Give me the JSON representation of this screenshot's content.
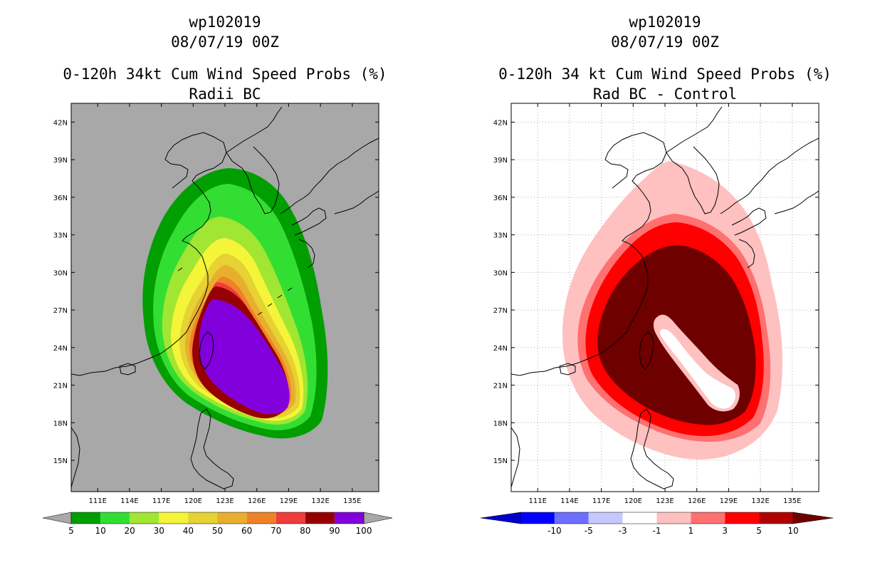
{
  "chart_data": [
    {
      "type": "heatmap",
      "title_line1": "wp102019",
      "title_line2": "08/07/19 00Z",
      "title_line3": "0-120h 34kt Cum Wind Speed Probs (%)",
      "title_line4": "Radii BC",
      "x_ticks": [
        "111E",
        "114E",
        "117E",
        "120E",
        "123E",
        "126E",
        "129E",
        "132E",
        "135E"
      ],
      "y_ticks": [
        "42N",
        "39N",
        "36N",
        "33N",
        "30N",
        "27N",
        "24N",
        "21N",
        "18N",
        "15N"
      ],
      "xlim": [
        108.5,
        137.5
      ],
      "ylim": [
        12.5,
        43.5
      ],
      "background_color": "#a8a8a8",
      "colorbar_labels": [
        "5",
        "10",
        "20",
        "30",
        "40",
        "50",
        "60",
        "70",
        "80",
        "90",
        "100"
      ],
      "colorbar_colors": [
        "#009e00",
        "#33de33",
        "#a0e632",
        "#f4f438",
        "#e6d232",
        "#e8af2e",
        "#ef8229",
        "#f03c3c",
        "#960000",
        "#8200dc"
      ],
      "contour_levels": [
        5,
        10,
        20,
        30,
        40,
        50,
        60,
        70,
        80,
        90
      ]
    },
    {
      "type": "heatmap",
      "title_line1": "wp102019",
      "title_line2": "08/07/19 00Z",
      "title_line3": "0-120h 34 kt Cum Wind Speed Probs (%)",
      "title_line4": "Rad BC - Control",
      "x_ticks": [
        "111E",
        "114E",
        "117E",
        "120E",
        "123E",
        "126E",
        "129E",
        "132E",
        "135E"
      ],
      "y_ticks": [
        "42N",
        "39N",
        "36N",
        "33N",
        "30N",
        "27N",
        "24N",
        "21N",
        "18N",
        "15N"
      ],
      "xlim": [
        108.5,
        137.5
      ],
      "ylim": [
        12.5,
        43.5
      ],
      "background_color": "#ffffff",
      "colorbar_labels": [
        "-10",
        "-5",
        "-3",
        "-1",
        "1",
        "3",
        "5",
        "10"
      ],
      "colorbar_colors": [
        "#0000c8",
        "#0000ff",
        "#6e6eff",
        "#c8c8ff",
        "#ffffff",
        "#ffc0c0",
        "#ff7070",
        "#ff0000",
        "#b00000",
        "#6e0000"
      ],
      "contour_levels": [
        1,
        3,
        5,
        10
      ]
    }
  ]
}
